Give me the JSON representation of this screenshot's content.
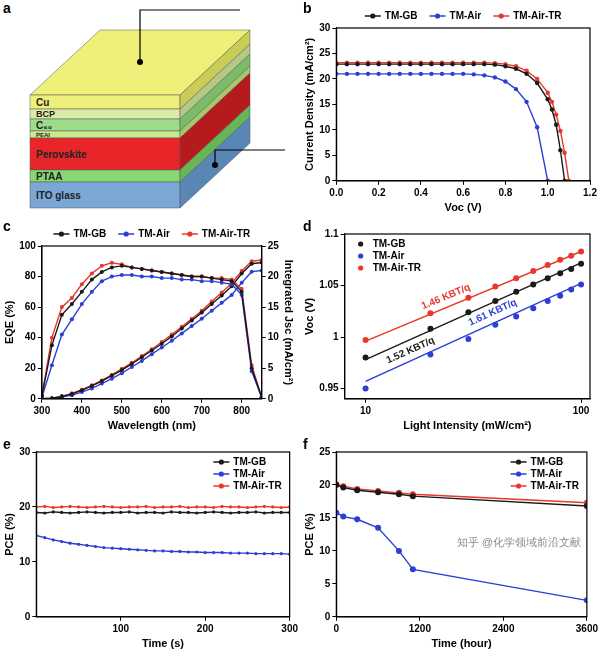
{
  "diagram": {
    "panel": "a",
    "layers": [
      "Cu",
      "BCP",
      "C₆₀",
      "PEAI",
      "Perovskite",
      "PTAA",
      "ITO glass"
    ]
  },
  "watermark": "知乎 @化学领域前沿文献",
  "chart_data": [
    {
      "panel": "b",
      "type": "line",
      "x_label": "Voc (V)",
      "y_label": "Current Density (mA/cm²)",
      "x": [
        0,
        0.05,
        0.1,
        0.15,
        0.2,
        0.25,
        0.3,
        0.35,
        0.4,
        0.45,
        0.5,
        0.55,
        0.6,
        0.65,
        0.7,
        0.75,
        0.8,
        0.85,
        0.9,
        0.95,
        1.0,
        1.02,
        1.04,
        1.06,
        1.08,
        1.1
      ],
      "series": [
        {
          "name": "TM-GB",
          "color": "#1a1a1a",
          "marker": "circle",
          "line_style": "solid",
          "values": [
            22.9,
            22.9,
            22.9,
            22.9,
            22.9,
            22.9,
            22.9,
            22.9,
            22.9,
            22.9,
            22.9,
            22.9,
            22.9,
            22.9,
            22.9,
            22.8,
            22.5,
            22.0,
            21.0,
            19.2,
            16.0,
            14.0,
            11.0,
            6.0,
            0,
            null
          ]
        },
        {
          "name": "TM-Air",
          "color": "#2b3fd6",
          "marker": "circle",
          "line_style": "solid",
          "values": [
            21.0,
            21.0,
            21.0,
            21.0,
            21.0,
            21.0,
            21.0,
            21.0,
            21.0,
            21.0,
            21.0,
            21.0,
            21.0,
            20.9,
            20.7,
            20.3,
            19.5,
            18.0,
            15.5,
            10.5,
            0,
            null,
            null,
            null,
            null,
            null
          ]
        },
        {
          "name": "TM-Air-TR",
          "color": "#e8372c",
          "marker": "circle",
          "line_style": "solid",
          "values": [
            23.2,
            23.2,
            23.2,
            23.2,
            23.2,
            23.2,
            23.2,
            23.2,
            23.2,
            23.2,
            23.2,
            23.2,
            23.2,
            23.2,
            23.2,
            23.1,
            22.9,
            22.5,
            21.6,
            20.0,
            17.3,
            15.5,
            13.0,
            9.8,
            5.5,
            0
          ]
        }
      ],
      "xlim": [
        0,
        1.2
      ],
      "xticks": [
        {
          "value": 0,
          "label": "0.0"
        },
        0.2,
        0.4,
        0.6,
        0.8,
        {
          "value": 1,
          "label": "1.0"
        },
        1.2
      ],
      "ylim": [
        0,
        30
      ],
      "yticks": [
        0,
        5,
        10,
        15,
        20,
        25,
        30
      ],
      "grid": false,
      "legend": "top"
    },
    {
      "panel": "c",
      "type": "line",
      "x_label": "Wavelength (nm)",
      "y_label": "EQE (%)",
      "y2_label": "Integrated Jsc (mA/cm²)",
      "x": [
        300,
        325,
        350,
        375,
        400,
        425,
        450,
        475,
        500,
        525,
        550,
        575,
        600,
        625,
        650,
        675,
        700,
        725,
        750,
        775,
        800,
        825,
        850
      ],
      "series": [
        {
          "name": "TM-GB",
          "color": "#1a1a1a",
          "marker": "circle",
          "line_style": "solid",
          "values": [
            2,
            35,
            55,
            62,
            70,
            78,
            83,
            86,
            87,
            86,
            85,
            84,
            83,
            82,
            81,
            80,
            80,
            79,
            78,
            77,
            70,
            20,
            1
          ]
        },
        {
          "name": "TM-Air",
          "color": "#2b3fd6",
          "marker": "circle",
          "line_style": "solid",
          "values": [
            1,
            22,
            42,
            52,
            62,
            70,
            77,
            80,
            81,
            81,
            80,
            80,
            79,
            79,
            78,
            78,
            77,
            77,
            76,
            75,
            68,
            18,
            1
          ]
        },
        {
          "name": "TM-Air-TR",
          "color": "#e8372c",
          "marker": "circle",
          "line_style": "solid",
          "values": [
            2,
            40,
            60,
            66,
            75,
            82,
            87,
            89,
            88,
            86,
            85,
            84,
            83,
            82,
            81,
            80,
            80,
            79,
            79,
            78,
            72,
            22,
            1
          ]
        },
        {
          "name": "TM-GB",
          "color": "#1a1a1a",
          "marker": "circle",
          "line_style": "solid",
          "axis": "y2",
          "values": [
            0,
            0.1,
            0.4,
            0.8,
            1.4,
            2.1,
            2.9,
            3.8,
            4.7,
            5.7,
            6.8,
            7.9,
            9.0,
            10.2,
            11.5,
            12.8,
            14.1,
            15.5,
            16.9,
            18.4,
            20.5,
            22.1,
            22.3
          ]
        },
        {
          "name": "TM-Air",
          "color": "#2b3fd6",
          "marker": "circle",
          "line_style": "solid",
          "axis": "y2",
          "values": [
            0,
            0.05,
            0.3,
            0.6,
            1.1,
            1.7,
            2.5,
            3.3,
            4.2,
            5.2,
            6.2,
            7.3,
            8.4,
            9.5,
            10.7,
            11.9,
            13.1,
            14.4,
            15.7,
            17.0,
            19.0,
            20.8,
            21.0
          ]
        },
        {
          "name": "TM-Air-TR",
          "color": "#e8372c",
          "marker": "circle",
          "line_style": "solid",
          "axis": "y2",
          "values": [
            0,
            0.1,
            0.4,
            0.9,
            1.5,
            2.2,
            3.0,
            3.9,
            4.9,
            5.9,
            7.0,
            8.1,
            9.3,
            10.5,
            11.8,
            13.1,
            14.4,
            15.9,
            17.4,
            18.9,
            20.9,
            22.5,
            22.7
          ]
        }
      ],
      "xlim": [
        300,
        850
      ],
      "xticks": [
        300,
        400,
        500,
        600,
        700,
        800
      ],
      "ylim": [
        0,
        100
      ],
      "yticks": [
        0,
        20,
        40,
        60,
        80,
        100
      ],
      "y2lim": [
        0,
        25
      ],
      "y2ticks": [
        0,
        5,
        10,
        15,
        20,
        25
      ],
      "grid": false,
      "legend": "top"
    },
    {
      "panel": "d",
      "type": "scatter",
      "x_label": "Light Intensity (mW/cm²)",
      "y_label": "Voc (V)",
      "x": [
        10,
        20,
        30,
        40,
        50,
        60,
        70,
        80,
        90,
        100
      ],
      "series": [
        {
          "name": "TM-GB",
          "color": "#1a1a1a",
          "marker": "circle",
          "values": [
            0.98,
            1.008,
            1.024,
            1.035,
            1.044,
            1.051,
            1.057,
            1.062,
            1.066,
            1.071
          ],
          "fit": {
            "x": [
              10,
              100
            ],
            "values": [
              0.978,
              1.072
            ]
          }
        },
        {
          "name": "TM-Air",
          "color": "#2b3fd6",
          "marker": "circle",
          "values": [
            0.95,
            0.983,
            0.998,
            1.012,
            1.02,
            1.028,
            1.035,
            1.04,
            1.046,
            1.051
          ],
          "fit": {
            "x": [
              10,
              100
            ],
            "values": [
              0.957,
              1.052
            ]
          }
        },
        {
          "name": "TM-Air-TR",
          "color": "#e8372c",
          "marker": "circle",
          "values": [
            0.997,
            1.023,
            1.038,
            1.049,
            1.057,
            1.064,
            1.07,
            1.075,
            1.079,
            1.083
          ],
          "fit": {
            "x": [
              10,
              100
            ],
            "values": [
              0.996,
              1.083
            ]
          }
        }
      ],
      "annotations": [
        {
          "text": "1.46 KBT/q",
          "series": "TM-Air-TR"
        },
        {
          "text": "1.52 KBT/q",
          "series": "TM-GB"
        },
        {
          "text": "1.61 KBT/q",
          "series": "TM-Air"
        }
      ],
      "xlim": [
        8,
        110
      ],
      "xticks": [
        10,
        100
      ],
      "ylim": [
        0.94,
        1.1
      ],
      "yticks": [
        0.95,
        1,
        1.05,
        1.1
      ],
      "log": "x",
      "grid": false,
      "legend": "top-left"
    },
    {
      "panel": "e",
      "type": "line",
      "x_label": "Time (s)",
      "y_label": "PCE (%)",
      "x": [
        0,
        10,
        20,
        30,
        40,
        50,
        60,
        70,
        80,
        90,
        100,
        110,
        120,
        130,
        140,
        150,
        160,
        170,
        180,
        190,
        200,
        210,
        220,
        230,
        240,
        250,
        260,
        270,
        280,
        290,
        300
      ],
      "series": [
        {
          "name": "TM-GB",
          "color": "#1a1a1a",
          "marker": "circle",
          "line_style": "solid",
          "values": [
            19.0,
            18.9,
            19.1,
            19.0,
            18.9,
            19.0,
            19.1,
            19.0,
            18.9,
            19.0,
            19.0,
            19.1,
            18.9,
            19.0,
            19.0,
            18.9,
            19.1,
            19.0,
            19.0,
            18.9,
            19.0,
            19.1,
            19.0,
            18.9,
            19.0,
            19.0,
            19.1,
            18.9,
            19.0,
            19.0,
            19.0
          ]
        },
        {
          "name": "TM-Air",
          "color": "#2b3fd6",
          "marker": "circle",
          "line_style": "solid",
          "values": [
            14.8,
            14.4,
            14.0,
            13.7,
            13.4,
            13.2,
            13.0,
            12.8,
            12.6,
            12.5,
            12.4,
            12.3,
            12.2,
            12.1,
            12.0,
            12.0,
            11.9,
            11.9,
            11.8,
            11.8,
            11.7,
            11.7,
            11.7,
            11.6,
            11.6,
            11.6,
            11.5,
            11.5,
            11.5,
            11.5,
            11.4
          ]
        },
        {
          "name": "TM-Air-TR",
          "color": "#e8372c",
          "marker": "circle",
          "line_style": "solid",
          "values": [
            20.0,
            20.1,
            19.9,
            20.0,
            20.1,
            20.0,
            19.9,
            20.0,
            20.1,
            20.0,
            19.9,
            20.0,
            20.0,
            20.1,
            19.9,
            20.0,
            20.0,
            20.1,
            19.9,
            20.0,
            20.0,
            19.9,
            20.1,
            20.0,
            20.0,
            19.9,
            20.0,
            20.1,
            20.0,
            19.9,
            20.0
          ]
        }
      ],
      "xlim": [
        0,
        300
      ],
      "xticks": [
        100,
        200,
        300
      ],
      "ylim": [
        0,
        30
      ],
      "yticks": [
        0,
        10,
        20,
        30
      ],
      "grid": false,
      "legend": "top-right"
    },
    {
      "panel": "f",
      "type": "line",
      "x_label": "Time (hour)",
      "y_label": "PCE (%)",
      "x": [
        0,
        100,
        300,
        600,
        900,
        1100,
        3600
      ],
      "series": [
        {
          "name": "TM-GB",
          "color": "#1a1a1a",
          "marker": "circle",
          "line_style": "solid",
          "values": [
            20.0,
            19.6,
            19.2,
            18.9,
            18.6,
            18.3,
            16.8
          ]
        },
        {
          "name": "TM-Air",
          "color": "#2b3fd6",
          "marker": "circle",
          "line_style": "solid",
          "values": [
            15.8,
            15.2,
            14.8,
            13.5,
            10.0,
            7.2,
            2.5
          ]
        },
        {
          "name": "TM-Air-TR",
          "color": "#e8372c",
          "marker": "circle",
          "line_style": "solid",
          "values": [
            20.1,
            19.8,
            19.4,
            19.1,
            18.8,
            18.6,
            17.3
          ]
        }
      ],
      "xlim": [
        0,
        3600
      ],
      "xticks": [
        0,
        1200,
        2400,
        3600
      ],
      "ylim": [
        0,
        25
      ],
      "yticks": [
        0,
        5,
        10,
        15,
        20,
        25
      ],
      "grid": false,
      "legend": "top-right"
    }
  ]
}
